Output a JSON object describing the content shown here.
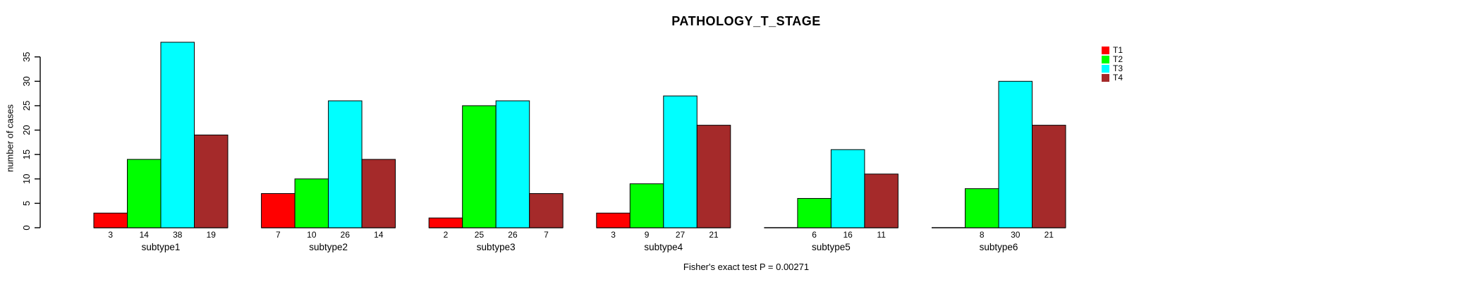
{
  "title": "PATHOLOGY_T_STAGE",
  "caption": "Fisher's exact test P = 0.00271",
  "chart_data": {
    "type": "bar",
    "title": "PATHOLOGY_T_STAGE",
    "xlabel": "",
    "ylabel": "number of cases",
    "categories": [
      "subtype1",
      "subtype2",
      "subtype3",
      "subtype4",
      "subtype5",
      "subtype6"
    ],
    "series": [
      {
        "name": "T1",
        "color": "#ff0000",
        "values": [
          3,
          7,
          2,
          3,
          0,
          0
        ]
      },
      {
        "name": "T2",
        "color": "#00ff00",
        "values": [
          14,
          10,
          25,
          9,
          6,
          8
        ]
      },
      {
        "name": "T3",
        "color": "#00ffff",
        "values": [
          38,
          26,
          26,
          27,
          16,
          30
        ]
      },
      {
        "name": "T4",
        "color": "#a52a2a",
        "values": [
          19,
          14,
          7,
          21,
          11,
          21
        ]
      }
    ],
    "bar_value_labels_shown": true,
    "zero_values_unlabeled": true,
    "yticks": [
      0,
      5,
      10,
      15,
      20,
      25,
      30,
      35
    ],
    "ylim": [
      0,
      38
    ],
    "grid": false,
    "legend_position": "top-right",
    "annotation": "Fisher's exact test P = 0.00271"
  }
}
